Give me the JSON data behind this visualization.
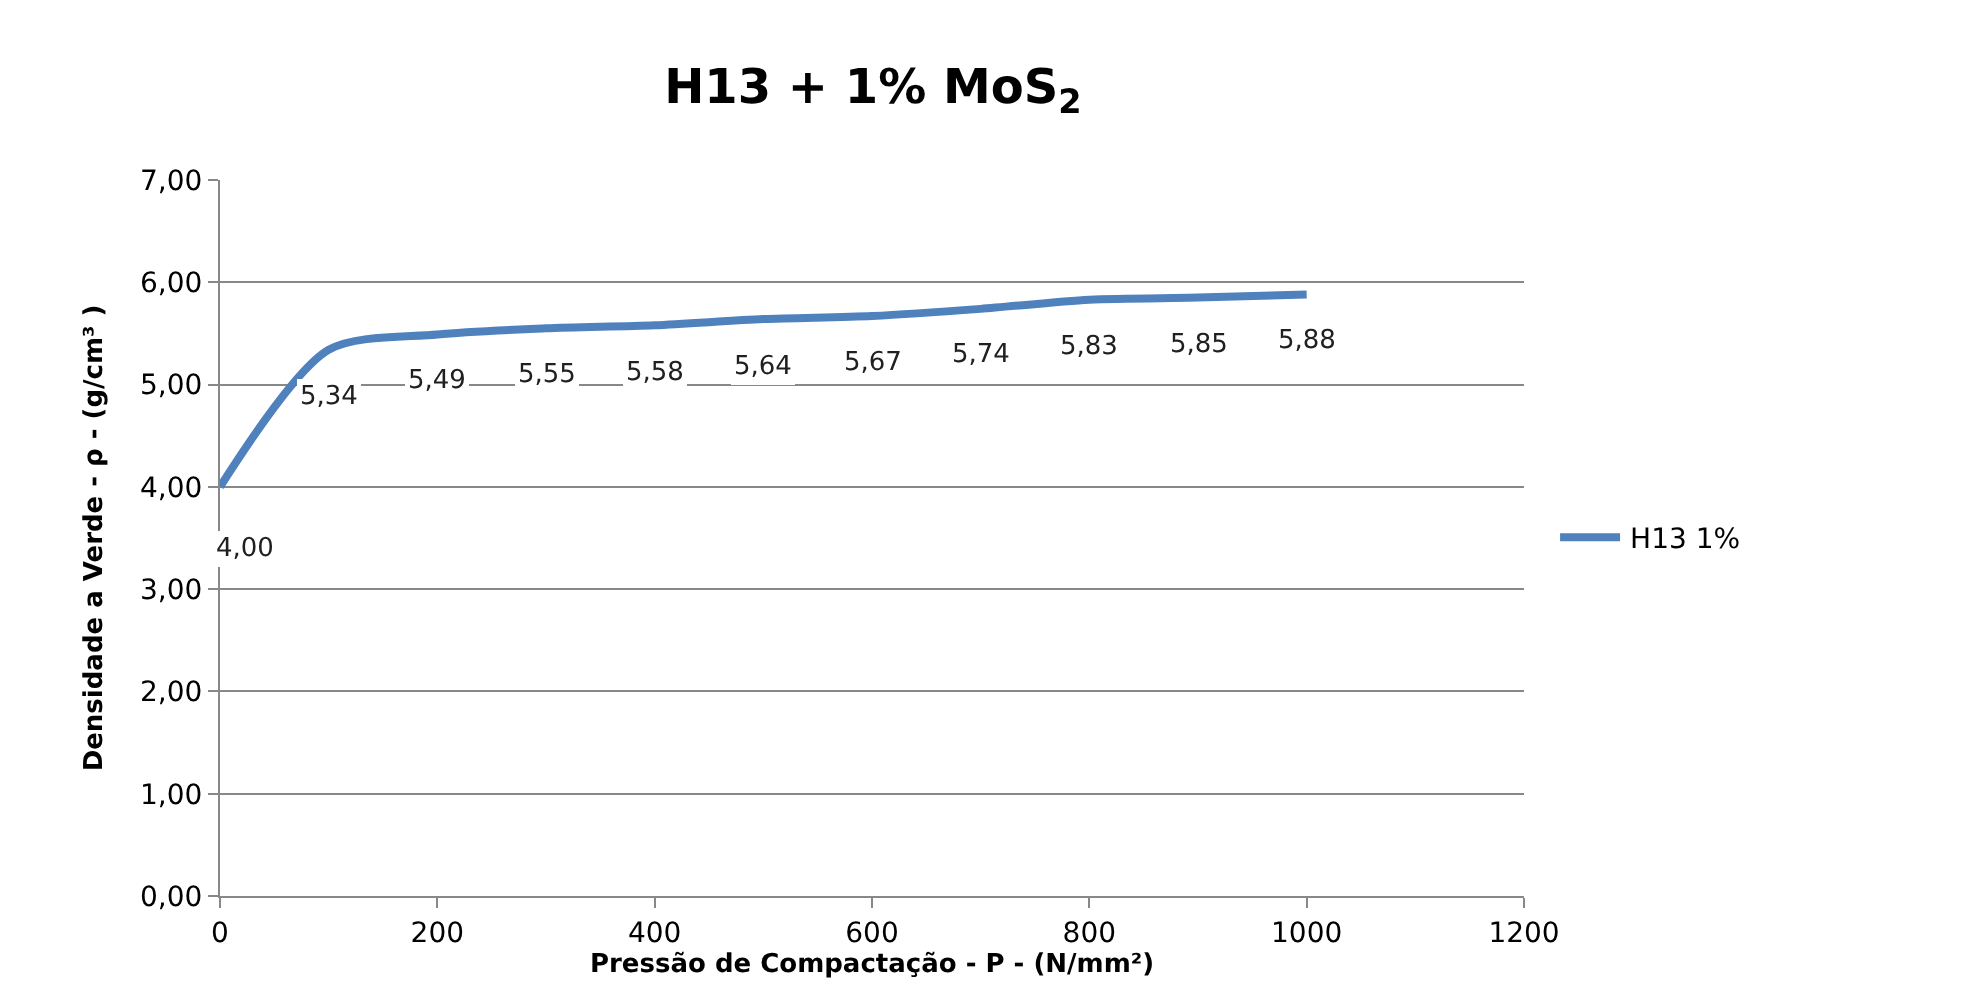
{
  "chart_data": {
    "type": "line",
    "title": "H13 + 1% MoS$_{2}$",
    "xlabel": "Pressão de Compactação - P - (N/mm²)",
    "ylabel": "Densidade a Verde - ρ - (g/cm³ )",
    "x": [
      0,
      100,
      200,
      300,
      400,
      500,
      600,
      700,
      800,
      900,
      1000
    ],
    "series": [
      {
        "name": "H13 1%",
        "color": "#4f81bd",
        "values": [
          4.0,
          5.34,
          5.49,
          5.55,
          5.58,
          5.64,
          5.67,
          5.74,
          5.83,
          5.85,
          5.88
        ],
        "value_labels": [
          "4,00",
          "5,34",
          "5,49",
          "5,55",
          "5,58",
          "5,64",
          "5,67",
          "5,74",
          "5,83",
          "5,85",
          "5,88"
        ]
      }
    ],
    "xlim": [
      0,
      1200
    ],
    "xticks": [
      0,
      200,
      400,
      600,
      800,
      1000,
      1200
    ],
    "ylim": [
      0,
      7
    ],
    "yticks": [
      {
        "value": 0,
        "label": "0,00"
      },
      {
        "value": 1,
        "label": "1,00"
      },
      {
        "value": 2,
        "label": "2,00"
      },
      {
        "value": 3,
        "label": "3,00"
      },
      {
        "value": 4,
        "label": "4,00"
      },
      {
        "value": 5,
        "label": "5,00"
      },
      {
        "value": 6,
        "label": "6,00"
      },
      {
        "value": 7,
        "label": "7,00"
      }
    ],
    "grid": "y",
    "legend": "right",
    "marker": "none",
    "line_style": "solid"
  }
}
